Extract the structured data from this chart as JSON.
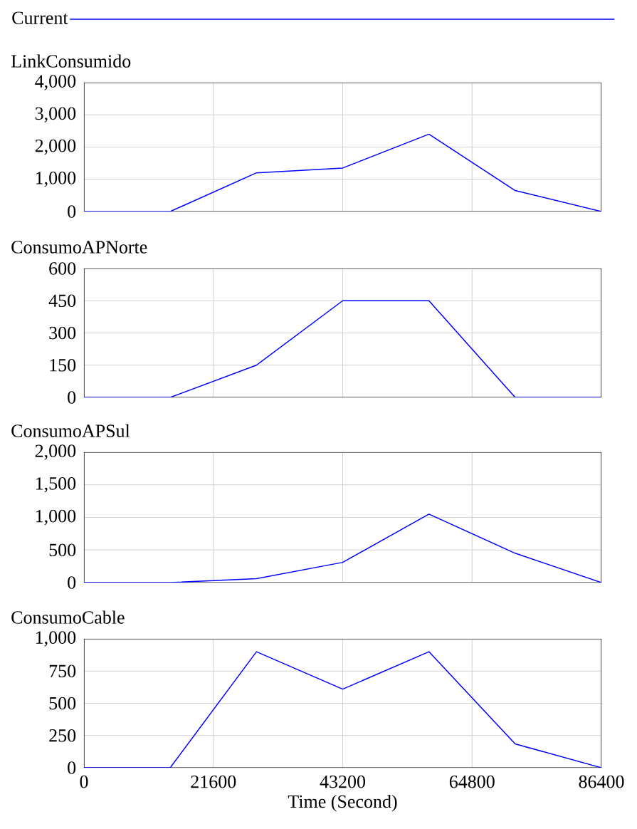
{
  "chart_data": [
    {
      "type": "line",
      "title": "LinkConsumido",
      "legend": "top",
      "grid": true,
      "tick_labels": "y",
      "xlim": [
        0,
        86400
      ],
      "xticks": [
        0,
        21600,
        43200,
        64800,
        86400
      ],
      "ylim": [
        0,
        4000
      ],
      "yticks": [
        {
          "value": 0,
          "label": "0"
        },
        {
          "value": 1000,
          "label": "1,000"
        },
        {
          "value": 2000,
          "label": "2,000"
        },
        {
          "value": 3000,
          "label": "3,000"
        },
        {
          "value": 4000,
          "label": "4,000"
        }
      ],
      "x": [
        0,
        14400,
        28800,
        43200,
        57600,
        72000,
        86400
      ],
      "series": [
        {
          "name": "Current",
          "color": "#0000ff",
          "values": [
            0,
            0,
            1200,
            1350,
            2400,
            650,
            0
          ]
        }
      ]
    },
    {
      "type": "line",
      "title": "ConsumoAPNorte",
      "grid": true,
      "tick_labels": "y",
      "xlim": [
        0,
        86400
      ],
      "xticks": [
        0,
        21600,
        43200,
        64800,
        86400
      ],
      "ylim": [
        0,
        600
      ],
      "yticks": [
        0,
        150,
        300,
        450,
        600
      ],
      "x": [
        0,
        14400,
        28800,
        43200,
        57600,
        72000,
        86400
      ],
      "series": [
        {
          "color": "#0000ff",
          "values": [
            0,
            0,
            150,
            450,
            450,
            0,
            0
          ]
        }
      ]
    },
    {
      "type": "line",
      "title": "ConsumoAPSul",
      "grid": true,
      "tick_labels": "y",
      "xlim": [
        0,
        86400
      ],
      "xticks": [
        0,
        21600,
        43200,
        64800,
        86400
      ],
      "ylim": [
        0,
        2000
      ],
      "yticks": [
        {
          "value": 0,
          "label": "0"
        },
        {
          "value": 500,
          "label": "500"
        },
        {
          "value": 1000,
          "label": "1,000"
        },
        {
          "value": 1500,
          "label": "1,500"
        },
        {
          "value": 2000,
          "label": "2,000"
        }
      ],
      "x": [
        0,
        14400,
        28800,
        43200,
        57600,
        72000,
        86400
      ],
      "series": [
        {
          "color": "#0000ff",
          "values": [
            0,
            0,
            60,
            310,
            1050,
            450,
            0
          ]
        }
      ]
    },
    {
      "type": "line",
      "title": "ConsumoCable",
      "xlabel": "Time (Second)",
      "grid": true,
      "xlim": [
        0,
        86400
      ],
      "xticks": [
        0,
        21600,
        43200,
        64800,
        86400
      ],
      "ylim": [
        0,
        1000
      ],
      "yticks": [
        {
          "value": 0,
          "label": "0"
        },
        {
          "value": 250,
          "label": "250"
        },
        {
          "value": 500,
          "label": "500"
        },
        {
          "value": 750,
          "label": "750"
        },
        {
          "value": 1000,
          "label": "1,000"
        }
      ],
      "x": [
        0,
        14400,
        28800,
        43200,
        57600,
        72000,
        86400
      ],
      "series": [
        {
          "color": "#0000ff",
          "values": [
            0,
            0,
            900,
            610,
            900,
            185,
            0
          ]
        }
      ]
    }
  ]
}
